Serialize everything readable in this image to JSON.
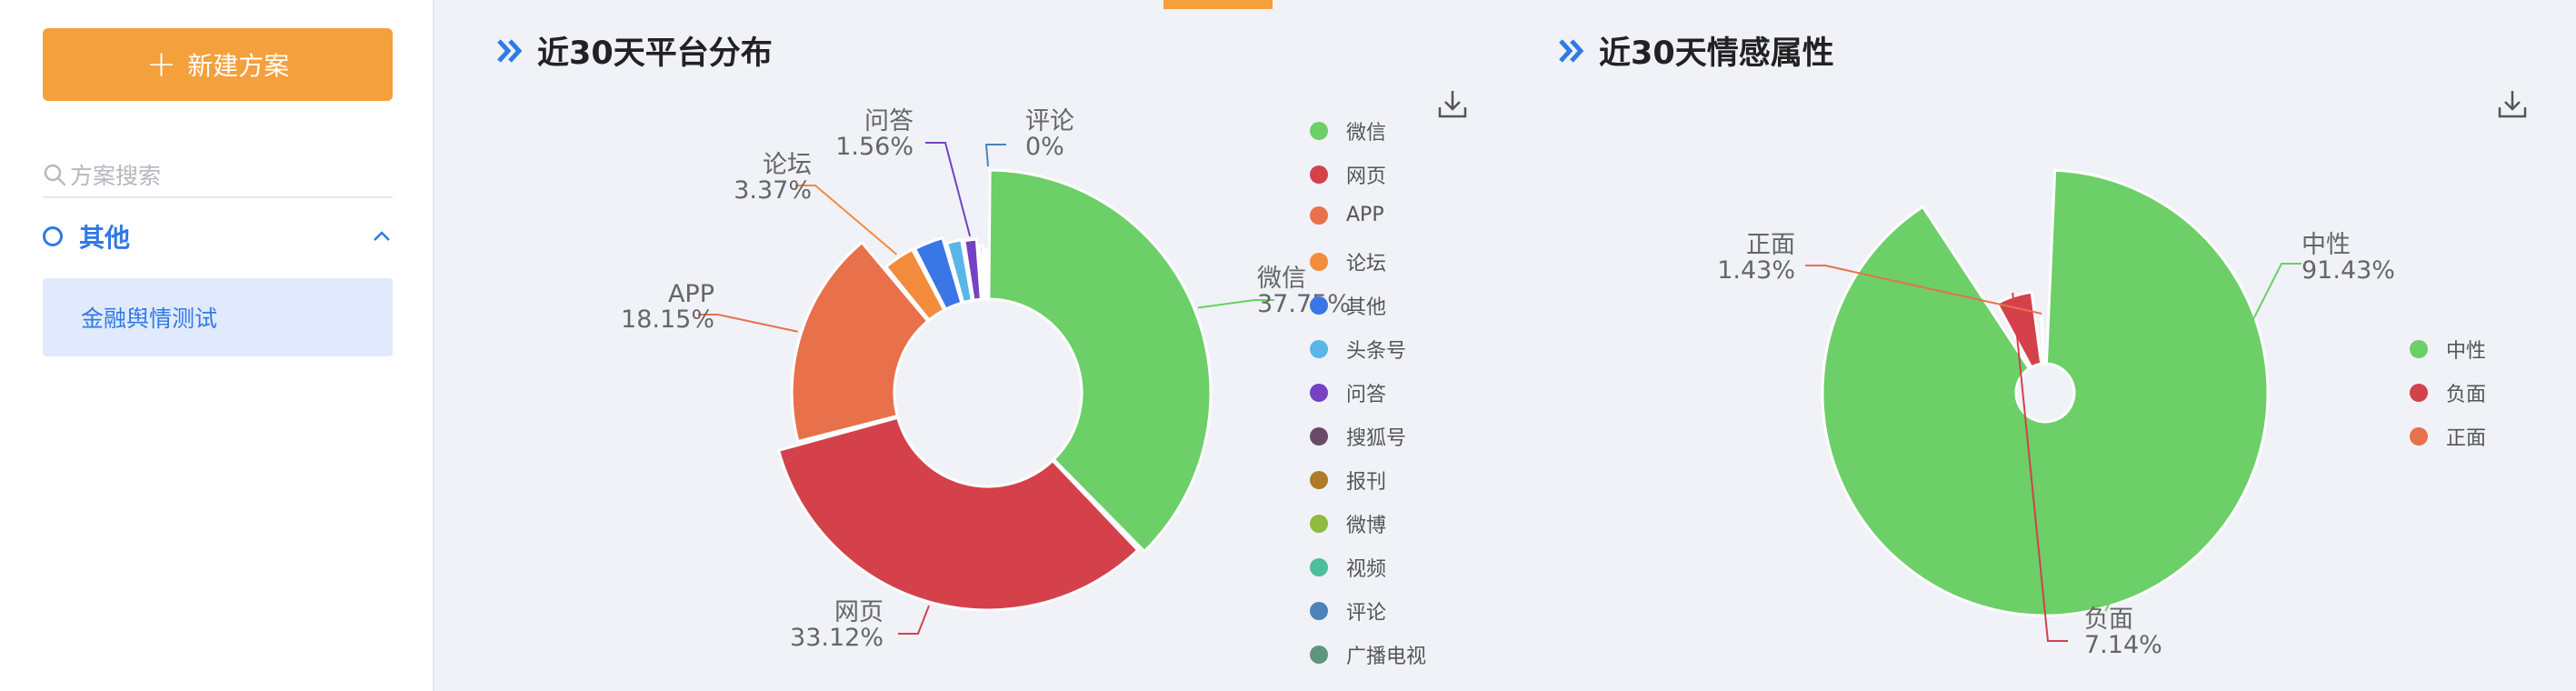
{
  "sidebar": {
    "new_button_label": "新建方案",
    "search_placeholder": "方案搜索",
    "group_label": "其他",
    "item_label": "金融舆情测试"
  },
  "colors": {
    "accent": "#f4a03c",
    "primary": "#2f7ae5"
  },
  "charts": [
    {
      "title": "近30天平台分布",
      "chart_data": {
        "type": "pie",
        "variant": "rose-donut",
        "title": "近30天平台分布",
        "legend_position": "right",
        "series": [
          {
            "name": "微信",
            "value": 37.75,
            "label": "37.75%",
            "color": "#6ccf68"
          },
          {
            "name": "网页",
            "value": 33.12,
            "label": "33.12%",
            "color": "#d4414b"
          },
          {
            "name": "APP",
            "value": 18.15,
            "label": "18.15%",
            "color": "#e8714b"
          },
          {
            "name": "论坛",
            "value": 3.37,
            "label": "3.37%",
            "color": "#f38b3d"
          },
          {
            "name": "其他",
            "value": 3.2,
            "label": "",
            "color": "#3a76e6"
          },
          {
            "name": "头条号",
            "value": 1.8,
            "label": "",
            "color": "#58b6e8"
          },
          {
            "name": "问答",
            "value": 1.56,
            "label": "1.56%",
            "color": "#7442c2"
          },
          {
            "name": "搜狐号",
            "value": 0.6,
            "label": "",
            "color": "#6b4a69"
          },
          {
            "name": "报刊",
            "value": 0.3,
            "label": "",
            "color": "#b07a29"
          },
          {
            "name": "微博",
            "value": 0.1,
            "label": "",
            "color": "#8fbb3e"
          },
          {
            "name": "视频",
            "value": 0.05,
            "label": "",
            "color": "#4bbf9a"
          },
          {
            "name": "评论",
            "value": 0.0,
            "label": "0%",
            "color": "#4c82b7"
          },
          {
            "name": "广播电视",
            "value": 0.0,
            "label": "",
            "color": "#5f957a"
          }
        ]
      }
    },
    {
      "title": "近30天情感属性",
      "chart_data": {
        "type": "pie",
        "variant": "rose-donut",
        "title": "近30天情感属性",
        "legend_position": "right",
        "series": [
          {
            "name": "中性",
            "value": 91.43,
            "label": "91.43%",
            "color": "#6ccf68"
          },
          {
            "name": "负面",
            "value": 7.14,
            "label": "7.14%",
            "color": "#d4414b"
          },
          {
            "name": "正面",
            "value": 1.43,
            "label": "1.43%",
            "color": "#e8714b"
          }
        ]
      }
    }
  ]
}
